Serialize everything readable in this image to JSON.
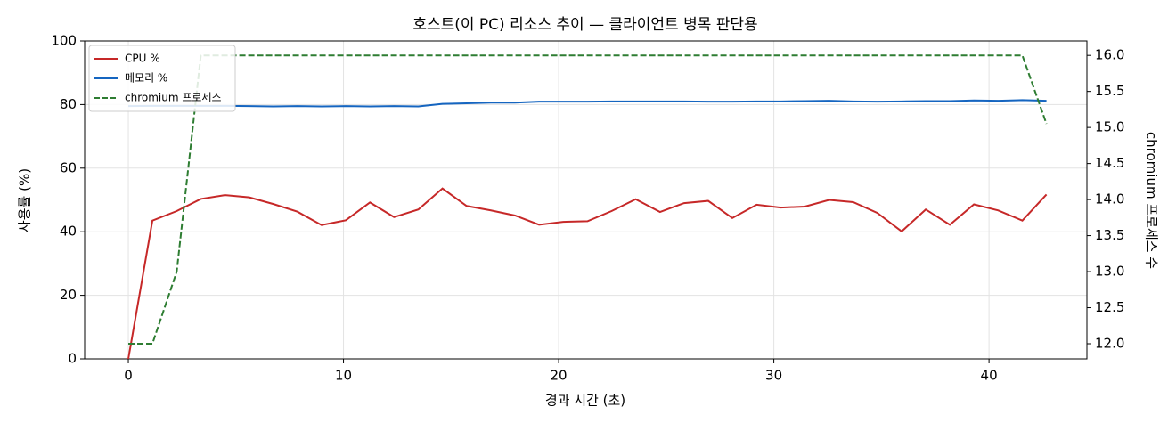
{
  "chart_data": {
    "type": "line",
    "title": "호스트(이 PC) 리소스 추이 — 클라이언트 병목 판단용",
    "xlabel": "경과 시간 (초)",
    "ylabel": "사용률 (%)",
    "y2label": "chromium 프로세스 수",
    "x": [
      0,
      1.12,
      2.25,
      3.37,
      4.49,
      5.62,
      6.74,
      7.86,
      8.98,
      10.11,
      11.23,
      12.35,
      13.48,
      14.6,
      15.72,
      16.85,
      17.97,
      19.09,
      20.21,
      21.34,
      22.46,
      23.58,
      24.71,
      25.83,
      26.95,
      28.07,
      29.2,
      30.32,
      31.44,
      32.57,
      33.69,
      34.81,
      35.94,
      37.06,
      38.18,
      39.3,
      40.43,
      41.55,
      42.67
    ],
    "series": [
      {
        "name": "CPU %",
        "color": "#c62828",
        "linestyle": "solid",
        "values": [
          0,
          43.5,
          46.5,
          50.3,
          51.5,
          50.8,
          48.7,
          46.3,
          42.1,
          43.6,
          49.2,
          44.6,
          47,
          53.6,
          48.1,
          46.7,
          45.1,
          42.2,
          43.1,
          43.3,
          46.5,
          50.2,
          46.2,
          49,
          49.7,
          44.3,
          48.5,
          47.6,
          47.9,
          50,
          49.3,
          45.9,
          40.1,
          47,
          42.2,
          48.6,
          46.7,
          43.5,
          51.7
        ]
      },
      {
        "name": "메모리 %",
        "color": "#1565c0",
        "linestyle": "solid",
        "values": [
          79.5,
          79.6,
          79.6,
          79.6,
          79.6,
          79.5,
          79.4,
          79.5,
          79.4,
          79.5,
          79.4,
          79.5,
          79.4,
          80.2,
          80.4,
          80.6,
          80.6,
          80.9,
          80.9,
          80.9,
          81,
          81,
          81,
          81,
          80.9,
          80.9,
          81,
          81,
          81.1,
          81.2,
          81,
          80.9,
          81,
          81.1,
          81.1,
          81.3,
          81.2,
          81.4,
          81.2
        ]
      },
      {
        "name": "chromium 프로세스",
        "color": "#2e7d32",
        "linestyle": "dashed",
        "axis": "y2",
        "values": [
          12,
          12,
          13,
          16,
          16,
          16,
          16,
          16,
          16,
          16,
          16,
          16,
          16,
          16,
          16,
          16,
          16,
          16,
          16,
          16,
          16,
          16,
          16,
          16,
          16,
          16,
          16,
          16,
          16,
          16,
          16,
          16,
          16,
          16,
          16,
          16,
          16,
          16,
          15.05
        ]
      }
    ],
    "xlim": [
      -2.03,
      44.55
    ],
    "xticks": [
      0,
      10,
      20,
      30,
      40
    ],
    "ylim": [
      0,
      100
    ],
    "yticks": [
      0,
      20,
      40,
      60,
      80,
      100
    ],
    "y2lim": [
      11.79,
      16.2
    ],
    "y2ticks": [
      {
        "value": 12,
        "label": "12.0"
      },
      12.5,
      {
        "value": 13,
        "label": "13.0"
      },
      13.5,
      {
        "value": 14,
        "label": "14.0"
      },
      14.5,
      {
        "value": 15,
        "label": "15.0"
      },
      15.5,
      {
        "value": 16,
        "label": "16.0"
      }
    ],
    "grid": true,
    "legend": "upper-left"
  }
}
